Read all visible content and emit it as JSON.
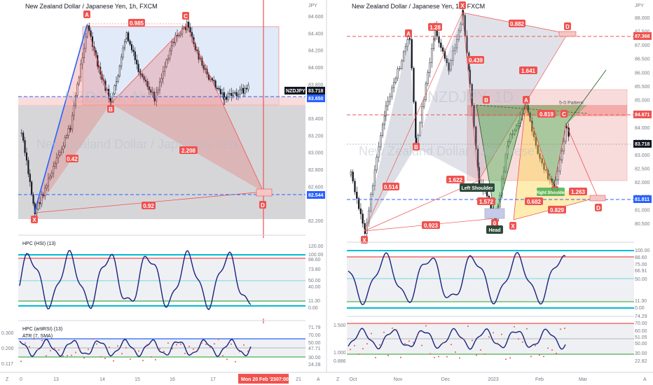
{
  "chart_data": [
    {
      "type": "candlestick",
      "title": "New Zealand Dollar / Japanese Yen, 1h, FXCM",
      "watermark_symbol": "NZDJPY, 1h",
      "watermark_name": "New Zealand Dollar / Japanese Yen",
      "currency": "JPY",
      "y_ticks": [
        "84.600",
        "84.400",
        "84.200",
        "84.000",
        "83.800",
        "83.400",
        "83.200",
        "83.000",
        "82.800",
        "82.600",
        "82.200"
      ],
      "ylim": [
        82.15,
        84.65
      ],
      "x_ticks": [
        "0",
        "13",
        "14",
        "15",
        "16",
        "17",
        "21"
      ],
      "crosshair_date": "Mon 20 Feb '23",
      "crosshair_time": "07:00",
      "price_labels": [
        {
          "text": "NZDJPY",
          "color": "#131722"
        },
        {
          "text": "83.718",
          "color": "#131722"
        },
        {
          "text": "83.650",
          "color": "#2962ff"
        },
        {
          "text": "82.544",
          "color": "#2962ff"
        }
      ],
      "harmonic_points": [
        "X",
        "A",
        "B",
        "C",
        "D"
      ],
      "ratios": [
        "0.985",
        "0.42",
        "2.208",
        "0.92"
      ],
      "pattern_points": [
        {
          "label": "X",
          "price": 82.33
        },
        {
          "label": "A",
          "price": 84.45
        },
        {
          "label": "B",
          "price": 83.49
        },
        {
          "label": "C",
          "price": 84.44
        },
        {
          "label": "D",
          "price": 82.53
        }
      ],
      "indicator1": {
        "name": "HPC (HSI) (13)",
        "ticks": [
          "100.00",
          "88.60",
          "73.80",
          "50.00",
          "11.30",
          "0.00"
        ],
        "ticks_extra": [
          "120.00",
          "40.00"
        ]
      },
      "indicator2": {
        "names": [
          "HPC (artiRSI) (13)",
          "ATR (7, SMA)"
        ],
        "left_ticks": [
          "0.300",
          "0.200",
          "0.117"
        ],
        "right_ticks": [
          "71.79",
          "70.00",
          "50.00",
          "47.71",
          "30.00",
          "24.28"
        ]
      }
    },
    {
      "type": "candlestick",
      "title": "New Zealand Dollar / Japanese Yen, 1D, FXCM",
      "watermark_symbol": "NZDJPY, 1D",
      "watermark_name": "New Zealand Dollar / Japanese Yen",
      "currency": "JPY",
      "y_ticks": [
        "88.000",
        "87.500",
        "87.000",
        "86.500",
        "86.000",
        "85.500",
        "85.000",
        "84.500",
        "84.000",
        "83.500",
        "83.000",
        "82.500",
        "82.000",
        "81.500",
        "81.000",
        "80.500"
      ],
      "ylim": [
        80.4,
        88.2
      ],
      "x_ticks": [
        "Oct",
        "Nov",
        "Dec",
        "2023",
        "Feb",
        "Mar"
      ],
      "price_labels": [
        {
          "text": "87.368",
          "color": "#ef5350"
        },
        {
          "text": "84.671",
          "color": "#ef5350"
        },
        {
          "text": "83.718",
          "color": "#131722"
        },
        {
          "text": "81.811",
          "color": "#2962ff"
        }
      ],
      "harmonic_points": [
        "X",
        "A",
        "B",
        "C",
        "D",
        "X",
        "B",
        "A",
        "B",
        "C",
        "D",
        "0",
        "X",
        "Head"
      ],
      "ratios": [
        "1.28",
        "0.882",
        "0.439",
        "1.641",
        "0.514",
        "1.622",
        "1.572",
        "0.923",
        "0.819",
        "0.682",
        "1.263",
        "0.829"
      ],
      "annotations": [
        "Left Shoulder",
        "Head",
        "Right Shoulder",
        "5-0 Pattern"
      ],
      "indicator1": {
        "ticks": [
          "100.00",
          "88.60",
          "66.91",
          "50.00",
          "11.30",
          "0.00"
        ],
        "ticks_extra": [
          "75.00"
        ]
      },
      "indicator2": {
        "left_ticks": [
          "1.500",
          "1.000",
          "0.886"
        ],
        "right_ticks": [
          "74.29",
          "70.00",
          "60.00",
          "51.05",
          "50.00",
          "30.00",
          "22.82"
        ]
      }
    }
  ],
  "colors": {
    "bull": "#131722",
    "red": "#ef5350",
    "blue": "#2962ff",
    "navy": "#1a237e",
    "cyan": "#00bcd4",
    "green": "#4caf50"
  }
}
